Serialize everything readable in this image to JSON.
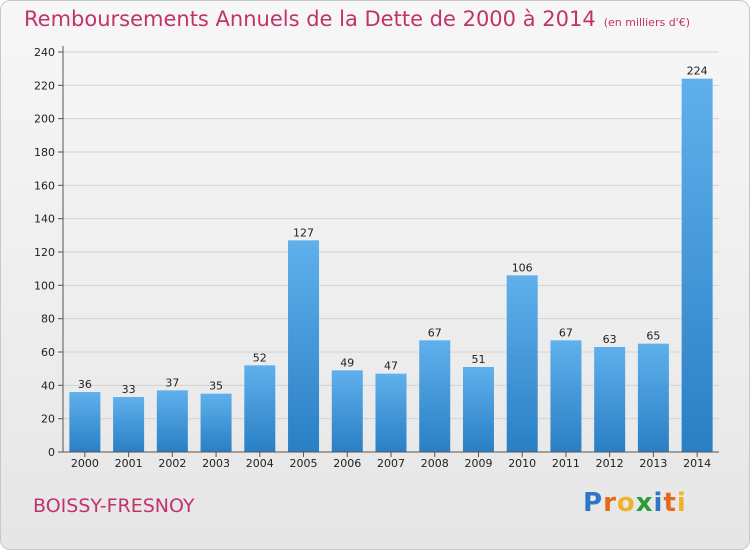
{
  "chart_data": {
    "type": "bar",
    "title": "Remboursements Annuels de la Dette de 2000 à 2014",
    "subtitle": "(en milliers d'€)",
    "categories": [
      "2000",
      "2001",
      "2002",
      "2003",
      "2004",
      "2005",
      "2006",
      "2007",
      "2008",
      "2009",
      "2010",
      "2011",
      "2012",
      "2013",
      "2014"
    ],
    "values": [
      36,
      33,
      37,
      35,
      52,
      127,
      49,
      47,
      67,
      51,
      106,
      67,
      63,
      65,
      224
    ],
    "ylim": [
      0,
      240
    ],
    "yticks": [
      0,
      20,
      40,
      60,
      80,
      100,
      120,
      140,
      160,
      180,
      200,
      220,
      240
    ],
    "xlabel": "",
    "ylabel": "",
    "grid": true,
    "bar_color": "#3d95d8"
  },
  "footer": {
    "city": "BOISSY-FRESNOY",
    "logo_letters": [
      "P",
      "r",
      "o",
      "x",
      "i",
      "t",
      "i"
    ],
    "logo_colors": [
      "#2d78c5",
      "#e36a1c",
      "#f0b22a",
      "#2d9b3a",
      "#2d78c5",
      "#e36a1c",
      "#f0b22a"
    ]
  }
}
